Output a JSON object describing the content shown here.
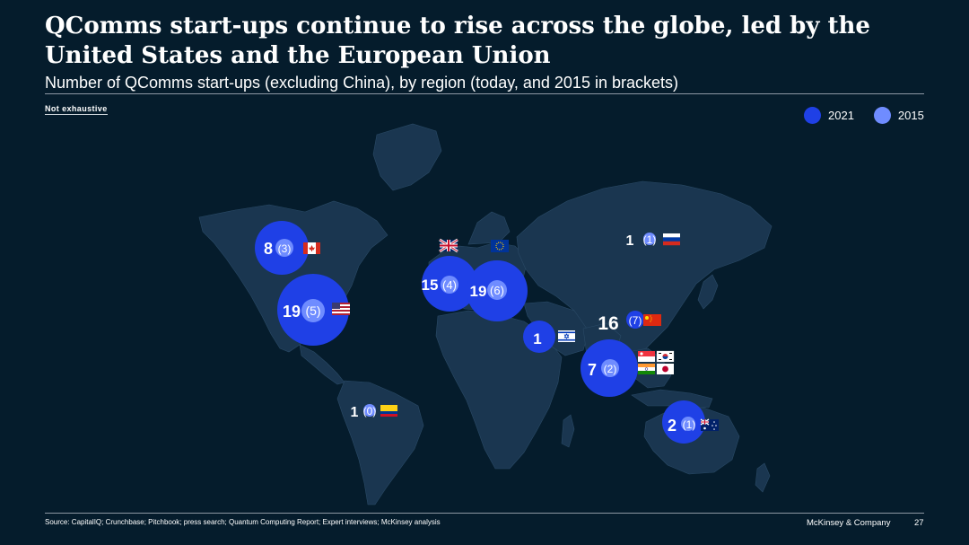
{
  "header": {
    "title": "QComms start-ups continue to rise across the globe, led by the United States and the European Union",
    "subtitle": "Number of QComms start-ups (excluding China), by region (today, and 2015 in brackets)",
    "note": "Not exhaustive"
  },
  "legend": {
    "items": [
      {
        "label": "2021",
        "color": "#1f40e6"
      },
      {
        "label": "2015",
        "color": "#6f8cff"
      }
    ]
  },
  "colors": {
    "background": "#051c2c",
    "land": "#1a3650",
    "bubble_2021": "#1f40e6",
    "bubble_2015": "#6f8cff"
  },
  "regions": [
    {
      "name": "Canada",
      "count_2021": "8",
      "count_2015": "(3)",
      "value_2021": 8,
      "value_2015": 3,
      "lon": -106,
      "lat": 57,
      "flag": "canada-flag-icon"
    },
    {
      "name": "United States",
      "count_2021": "19",
      "count_2015": "(5)",
      "value_2021": 19,
      "value_2015": 5,
      "lon": -100,
      "lat": 38,
      "flag": "us-flag-icon"
    },
    {
      "name": "Colombia",
      "count_2021": "1",
      "count_2015": "(0)",
      "value_2021": 1,
      "value_2015": 0,
      "lon": -74,
      "lat": 4,
      "flag": "colombia-flag-icon"
    },
    {
      "name": "United Kingdom",
      "count_2021": "15",
      "count_2015": "(4)",
      "value_2021": 15,
      "value_2015": 4,
      "lon": -2,
      "lat": 54,
      "flag": "uk-flag-icon"
    },
    {
      "name": "European Union",
      "count_2021": "19",
      "count_2015": "(6)",
      "value_2021": 19,
      "value_2015": 6,
      "lon": 12,
      "lat": 50,
      "flag": "eu-flag-icon"
    },
    {
      "name": "Israel",
      "count_2021": "1",
      "count_2015": "",
      "value_2021": 1,
      "value_2015": 0,
      "lon": 35,
      "lat": 31,
      "flag": "israel-flag-icon"
    },
    {
      "name": "Russia",
      "count_2021": "1",
      "count_2015": "(1)",
      "value_2021": 1,
      "value_2015": 1,
      "lon": 90,
      "lat": 62,
      "flag": "russia-flag-icon"
    },
    {
      "name": "China",
      "count_2021": "16",
      "count_2015": "(7)",
      "value_2021": 16,
      "value_2015": 7,
      "lon": 105,
      "lat": 35,
      "flag": "china-flag-icon"
    },
    {
      "name": "Asia (India, Singapore, South Korea, Japan)",
      "count_2021": "7",
      "count_2015": "(2)",
      "value_2021": 7,
      "value_2015": 2,
      "lon": 100,
      "lat": 15,
      "flag": "asia-flags-icon"
    },
    {
      "name": "Australia",
      "count_2021": "2",
      "count_2015": "(1)",
      "value_2021": 2,
      "value_2015": 1,
      "lon": 134,
      "lat": -25,
      "flag": "australia-flag-icon"
    }
  ],
  "footer": {
    "source": "Source: CapitalIQ; Crunchbase; Pitchbook; press search; Quantum Computing Report; Expert interviews; McKinsey analysis",
    "brand": "McKinsey & Company",
    "page": "27"
  }
}
